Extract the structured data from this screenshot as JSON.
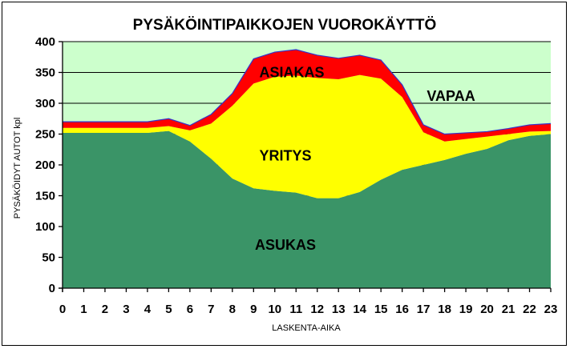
{
  "chart_data": {
    "type": "area",
    "stacked": true,
    "title": "PYSÄKÖINTIPAIKKOJEN VUOROKÄYTTÖ",
    "xlabel": "LASKENTA-AIKA",
    "ylabel": "PYSÄKÖIDYT AUTOT kpl",
    "ylim": [
      0,
      400
    ],
    "yticks": [
      0,
      50,
      100,
      150,
      200,
      250,
      300,
      350,
      400
    ],
    "x": [
      0,
      1,
      2,
      3,
      4,
      5,
      6,
      7,
      8,
      9,
      10,
      11,
      12,
      13,
      14,
      15,
      16,
      17,
      18,
      19,
      20,
      21,
      22,
      23
    ],
    "grid": true,
    "legend": "none",
    "series": [
      {
        "name": "ASUKAS",
        "color": "#3a9467",
        "values": [
          252,
          252,
          252,
          252,
          252,
          255,
          238,
          210,
          178,
          162,
          158,
          155,
          146,
          146,
          156,
          176,
          192,
          200,
          208,
          218,
          226,
          240,
          247,
          250
        ]
      },
      {
        "name": "YRITYS",
        "color": "#ffff00",
        "values": [
          8,
          8,
          8,
          8,
          8,
          8,
          18,
          57,
          118,
          170,
          185,
          190,
          195,
          193,
          190,
          164,
          118,
          53,
          30,
          24,
          20,
          10,
          7,
          5
        ]
      },
      {
        "name": "ASIAKAS",
        "color": "#ff0000",
        "values": [
          10,
          10,
          10,
          10,
          10,
          12,
          8,
          15,
          20,
          40,
          40,
          42,
          37,
          34,
          32,
          30,
          20,
          12,
          12,
          10,
          8,
          9,
          11,
          12
        ]
      }
    ],
    "annotations": [
      {
        "text": "ASUKAS",
        "x": 10.5,
        "y": 70
      },
      {
        "text": "YRITYS",
        "x": 10.5,
        "y": 215
      },
      {
        "text": "ASIAKAS",
        "x": 10.8,
        "y": 350
      },
      {
        "text": "VAPAA",
        "x": 18.3,
        "y": 312
      }
    ],
    "colors": {
      "plot_background": "#ccffcc",
      "free_area_outline": "#3333cc",
      "grid": "#000000"
    }
  }
}
